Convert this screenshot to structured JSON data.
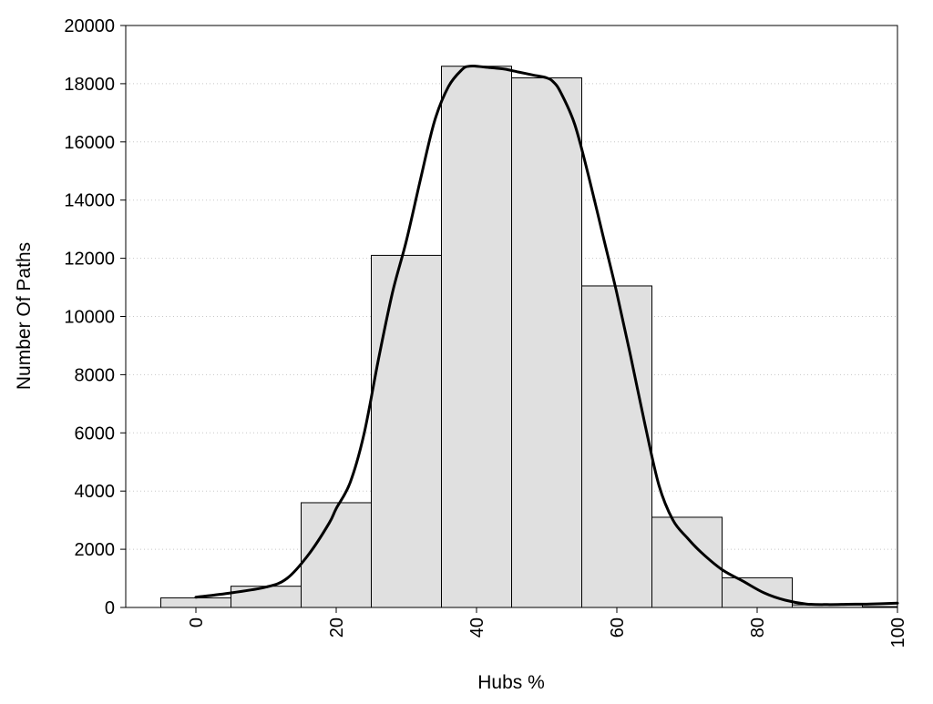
{
  "chart_data": {
    "type": "bar",
    "title": "",
    "xlabel": "Hubs %",
    "ylabel": "Number Of Paths",
    "xlim": [
      -10,
      100
    ],
    "ylim": [
      0,
      20000
    ],
    "xticks": [
      "0",
      "20",
      "40",
      "60",
      "80",
      "100"
    ],
    "yticks": [
      "0",
      "2000",
      "4000",
      "6000",
      "8000",
      "10000",
      "12000",
      "14000",
      "16000",
      "18000",
      "20000"
    ],
    "grid": "horizontal-dotted",
    "bins": [
      {
        "x0": -5,
        "x1": 5,
        "value": 330
      },
      {
        "x0": 5,
        "x1": 15,
        "value": 730
      },
      {
        "x0": 15,
        "x1": 25,
        "value": 3600
      },
      {
        "x0": 25,
        "x1": 35,
        "value": 12100
      },
      {
        "x0": 35,
        "x1": 45,
        "value": 18600
      },
      {
        "x0": 45,
        "x1": 55,
        "value": 18200
      },
      {
        "x0": 55,
        "x1": 65,
        "value": 11050
      },
      {
        "x0": 65,
        "x1": 75,
        "value": 3100
      },
      {
        "x0": 75,
        "x1": 85,
        "value": 1020
      },
      {
        "x0": 85,
        "x1": 95,
        "value": 90
      },
      {
        "x0": 95,
        "x1": 100,
        "value": 30
      }
    ],
    "curve": {
      "x": [
        0,
        5,
        10,
        13,
        16,
        19,
        20,
        22,
        24,
        26,
        28,
        30,
        32,
        34,
        36,
        38,
        39,
        40,
        42,
        44,
        46,
        48,
        50,
        51,
        52,
        54,
        56,
        58,
        60,
        62,
        64,
        66,
        68,
        70,
        72,
        75,
        78,
        81,
        84,
        87,
        90,
        93,
        96,
        100
      ],
      "y": [
        350,
        500,
        700,
        1000,
        1800,
        2900,
        3400,
        4300,
        6000,
        8500,
        10800,
        12600,
        14700,
        16700,
        17900,
        18500,
        18600,
        18600,
        18550,
        18500,
        18400,
        18300,
        18200,
        18050,
        17700,
        16600,
        14800,
        12800,
        10800,
        8600,
        6300,
        4200,
        3000,
        2400,
        1900,
        1300,
        900,
        500,
        250,
        120,
        100,
        110,
        120,
        150
      ]
    },
    "colors": {
      "bar_fill": "#e0e0e0",
      "bar_stroke": "#000000",
      "curve": "#000000",
      "grid": "#c8c8c8"
    }
  }
}
